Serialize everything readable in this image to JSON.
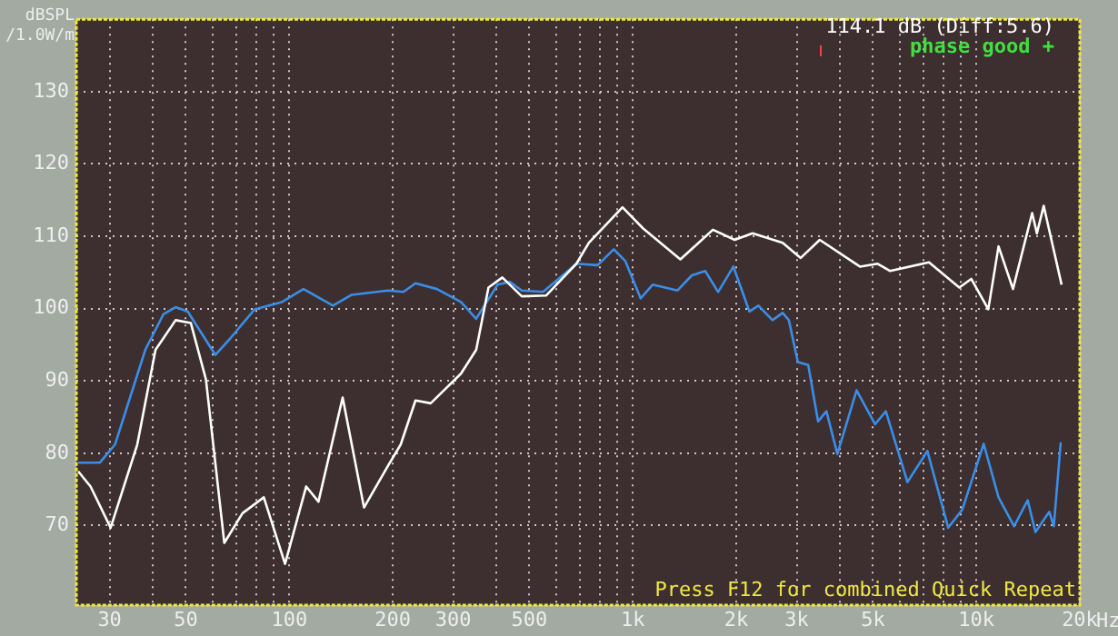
{
  "chart_data": {
    "type": "line",
    "ylabel": "dBSPL /1.0W/m",
    "xlabel": "Hz",
    "annotations": [
      "114.1 dB (Diff:5.6)",
      "phase good +",
      "Press F12 for combined Quick Repeat"
    ],
    "xlim": [
      24,
      20000
    ],
    "ylim": [
      59,
      140
    ],
    "log": "x",
    "grid": true,
    "legend": false,
    "marker": "none",
    "line_style": "solid",
    "xticks": [
      30,
      {
        "value": 40,
        "label": null
      },
      50,
      {
        "value": 60,
        "label": null
      },
      {
        "value": 70,
        "label": null
      },
      {
        "value": 80,
        "label": null
      },
      {
        "value": 90,
        "label": null
      },
      100,
      200,
      300,
      {
        "value": 400,
        "label": null
      },
      500,
      {
        "value": 600,
        "label": null
      },
      {
        "value": 700,
        "label": null
      },
      {
        "value": 800,
        "label": null
      },
      {
        "value": 900,
        "label": null
      },
      {
        "value": 1000,
        "label": "1k"
      },
      {
        "value": 2000,
        "label": "2k"
      },
      {
        "value": 3000,
        "label": "3k"
      },
      {
        "value": 4000,
        "label": null
      },
      {
        "value": 5000,
        "label": "5k"
      },
      {
        "value": 6000,
        "label": null
      },
      {
        "value": 7000,
        "label": null
      },
      {
        "value": 8000,
        "label": null
      },
      {
        "value": 9000,
        "label": null
      },
      {
        "value": 10000,
        "label": "10k"
      },
      {
        "value": 20000,
        "label": "20k"
      }
    ],
    "yticks": [
      70,
      80,
      90,
      100,
      110,
      120,
      130
    ],
    "series": [
      {
        "color": "#ffffff",
        "x": [
          24.3,
          26.4,
          30.2,
          36.1,
          40.8,
          46.7,
          51.7,
          57.2,
          64.7,
          73.1,
          84.3,
          97.2,
          112,
          121.6,
          143,
          165,
          194,
          211,
          233,
          258,
          316,
          350,
          380,
          417,
          475,
          559,
          685,
          745,
          933,
          1070,
          1375,
          1710,
          1980,
          2230,
          2730,
          3080,
          3500,
          4580,
          5160,
          5600,
          7280,
          8920,
          9660,
          10830,
          11600,
          12780,
          14530,
          15000,
          15700,
          17700
        ],
        "values": [
          77.5,
          75.4,
          69.7,
          81.2,
          94.3,
          98.4,
          98.0,
          90.2,
          67.6,
          71.7,
          73.9,
          64.7,
          75.4,
          73.3,
          87.7,
          72.5,
          78.3,
          81.2,
          87.3,
          86.9,
          91.0,
          94.3,
          102.9,
          104.3,
          101.7,
          101.8,
          106.2,
          109.1,
          114.0,
          111.1,
          106.8,
          110.9,
          109.5,
          110.4,
          109.1,
          107.0,
          109.5,
          105.8,
          106.2,
          105.2,
          106.4,
          102.9,
          104.1,
          99.9,
          108.6,
          102.7,
          113.2,
          110.4,
          114.2,
          103.3
        ]
      },
      {
        "color": "#3a8ee8",
        "x": [
          24.3,
          28.1,
          31.1,
          38.1,
          43.0,
          46.7,
          50.6,
          60.9,
          67.4,
          79.3,
          95.2,
          110,
          134,
          152,
          194,
          215,
          233,
          269,
          316,
          350,
          404,
          438,
          475,
          548,
          685,
          790,
          880,
          950,
          1054,
          1142,
          1349,
          1486,
          1624,
          1771,
          1962,
          2184,
          2320,
          2550,
          2730,
          2845,
          3022,
          3240,
          3460,
          3660,
          3938,
          4480,
          5070,
          5450,
          6300,
          7200,
          8280,
          9100,
          10500,
          11600,
          12870,
          14100,
          14860,
          16300,
          16800,
          17600
        ],
        "values": [
          78.7,
          78.7,
          81.2,
          94.3,
          99.2,
          100.2,
          99.6,
          93.6,
          95.9,
          99.9,
          100.9,
          102.7,
          100.4,
          101.9,
          102.5,
          102.3,
          103.5,
          102.7,
          100.9,
          98.6,
          103.3,
          103.7,
          102.5,
          102.3,
          106.2,
          106.0,
          108.2,
          106.6,
          101.4,
          103.3,
          102.5,
          104.6,
          105.2,
          102.3,
          105.8,
          99.6,
          100.4,
          98.4,
          99.4,
          98.4,
          92.6,
          92.2,
          84.4,
          85.8,
          79.9,
          88.7,
          84.0,
          85.8,
          76.0,
          80.3,
          69.7,
          72.2,
          81.3,
          73.9,
          69.9,
          73.5,
          69.1,
          71.9,
          69.9,
          81.5
        ]
      }
    ]
  }
}
